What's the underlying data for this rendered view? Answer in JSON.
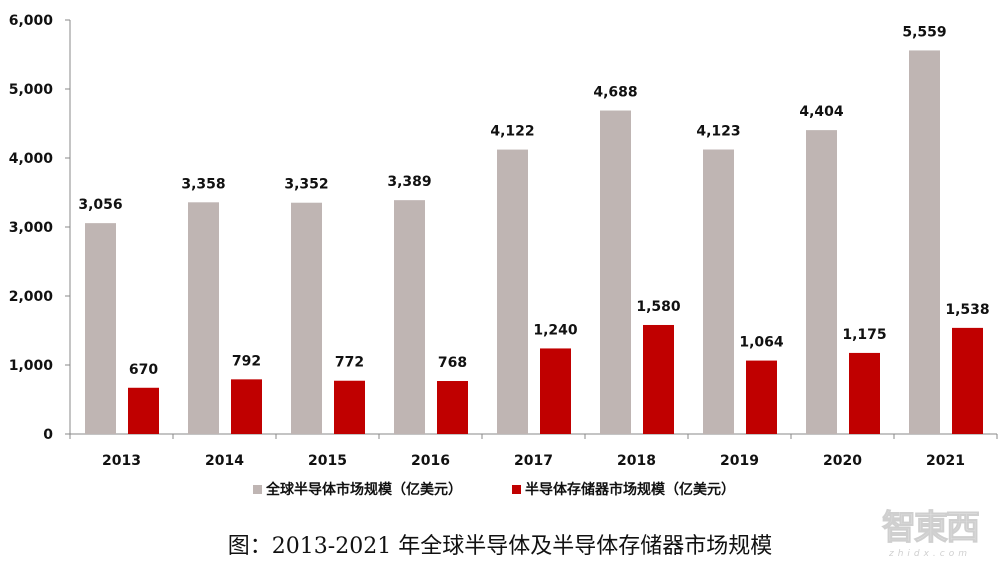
{
  "chart_data": {
    "type": "bar",
    "title": "图：2013-2021 年全球半导体及半导体存储器市场规模",
    "xlabel": "",
    "ylabel": "",
    "ylim": [
      0,
      6000
    ],
    "yticks": [
      "0",
      "1,000",
      "2,000",
      "3,000",
      "4,000",
      "5,000",
      "6,000"
    ],
    "ytick_values": [
      0,
      1000,
      2000,
      3000,
      4000,
      5000,
      6000
    ],
    "grid": false,
    "legend_position": "bottom",
    "categories": [
      "2013",
      "2014",
      "2015",
      "2016",
      "2017",
      "2018",
      "2019",
      "2020",
      "2021"
    ],
    "series": [
      {
        "name": "全球半导体市场规模（亿美元）",
        "color": "#bfb5b3",
        "values": [
          3056,
          3358,
          3352,
          3389,
          4122,
          4688,
          4123,
          4404,
          5559
        ],
        "labels": [
          "3,056",
          "3,358",
          "3,352",
          "3,389",
          "4,122",
          "4,688",
          "4,123",
          "4,404",
          "5,559"
        ]
      },
      {
        "name": "半导体存储器市场规模（亿美元）",
        "color": "#c00000",
        "values": [
          670,
          792,
          772,
          768,
          1240,
          1580,
          1064,
          1175,
          1538
        ],
        "labels": [
          "670",
          "792",
          "772",
          "768",
          "1,240",
          "1,580",
          "1,064",
          "1,175",
          "1,538"
        ]
      }
    ]
  },
  "watermark": {
    "main": "智東西",
    "sub": "zhidx.com"
  }
}
